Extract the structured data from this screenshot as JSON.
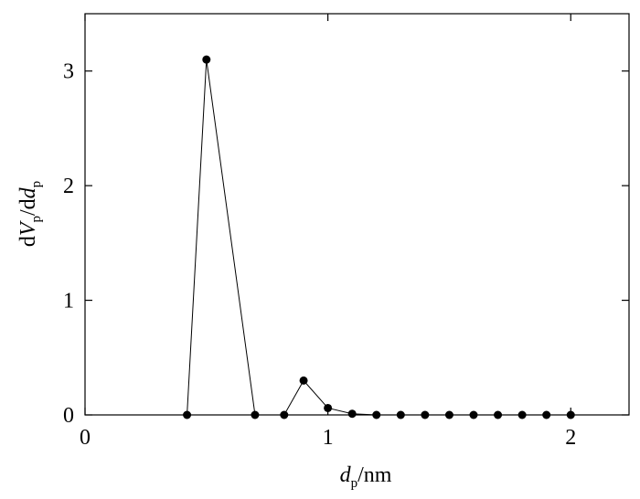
{
  "chart_data": {
    "type": "line",
    "xlabel": [
      "d",
      "p",
      "/nm"
    ],
    "ylabel": [
      "d",
      "V",
      "p",
      "/d",
      "d",
      "p"
    ],
    "x": [
      0.42,
      0.5,
      0.7,
      0.82,
      0.9,
      1.0,
      1.1,
      1.2,
      1.3,
      1.4,
      1.5,
      1.6,
      1.7,
      1.8,
      1.9,
      2.0
    ],
    "series": [
      {
        "color": "#000000",
        "values": [
          0,
          3.1,
          0,
          0,
          0.3,
          0.06,
          0.01,
          0,
          0,
          0,
          0,
          0,
          0,
          0,
          0,
          0
        ]
      }
    ],
    "xlim": [
      0,
      2.24
    ],
    "ylim": [
      0,
      3.5
    ],
    "xticks": [
      0,
      1,
      2
    ],
    "yticks": [
      0,
      1,
      2,
      3
    ]
  }
}
